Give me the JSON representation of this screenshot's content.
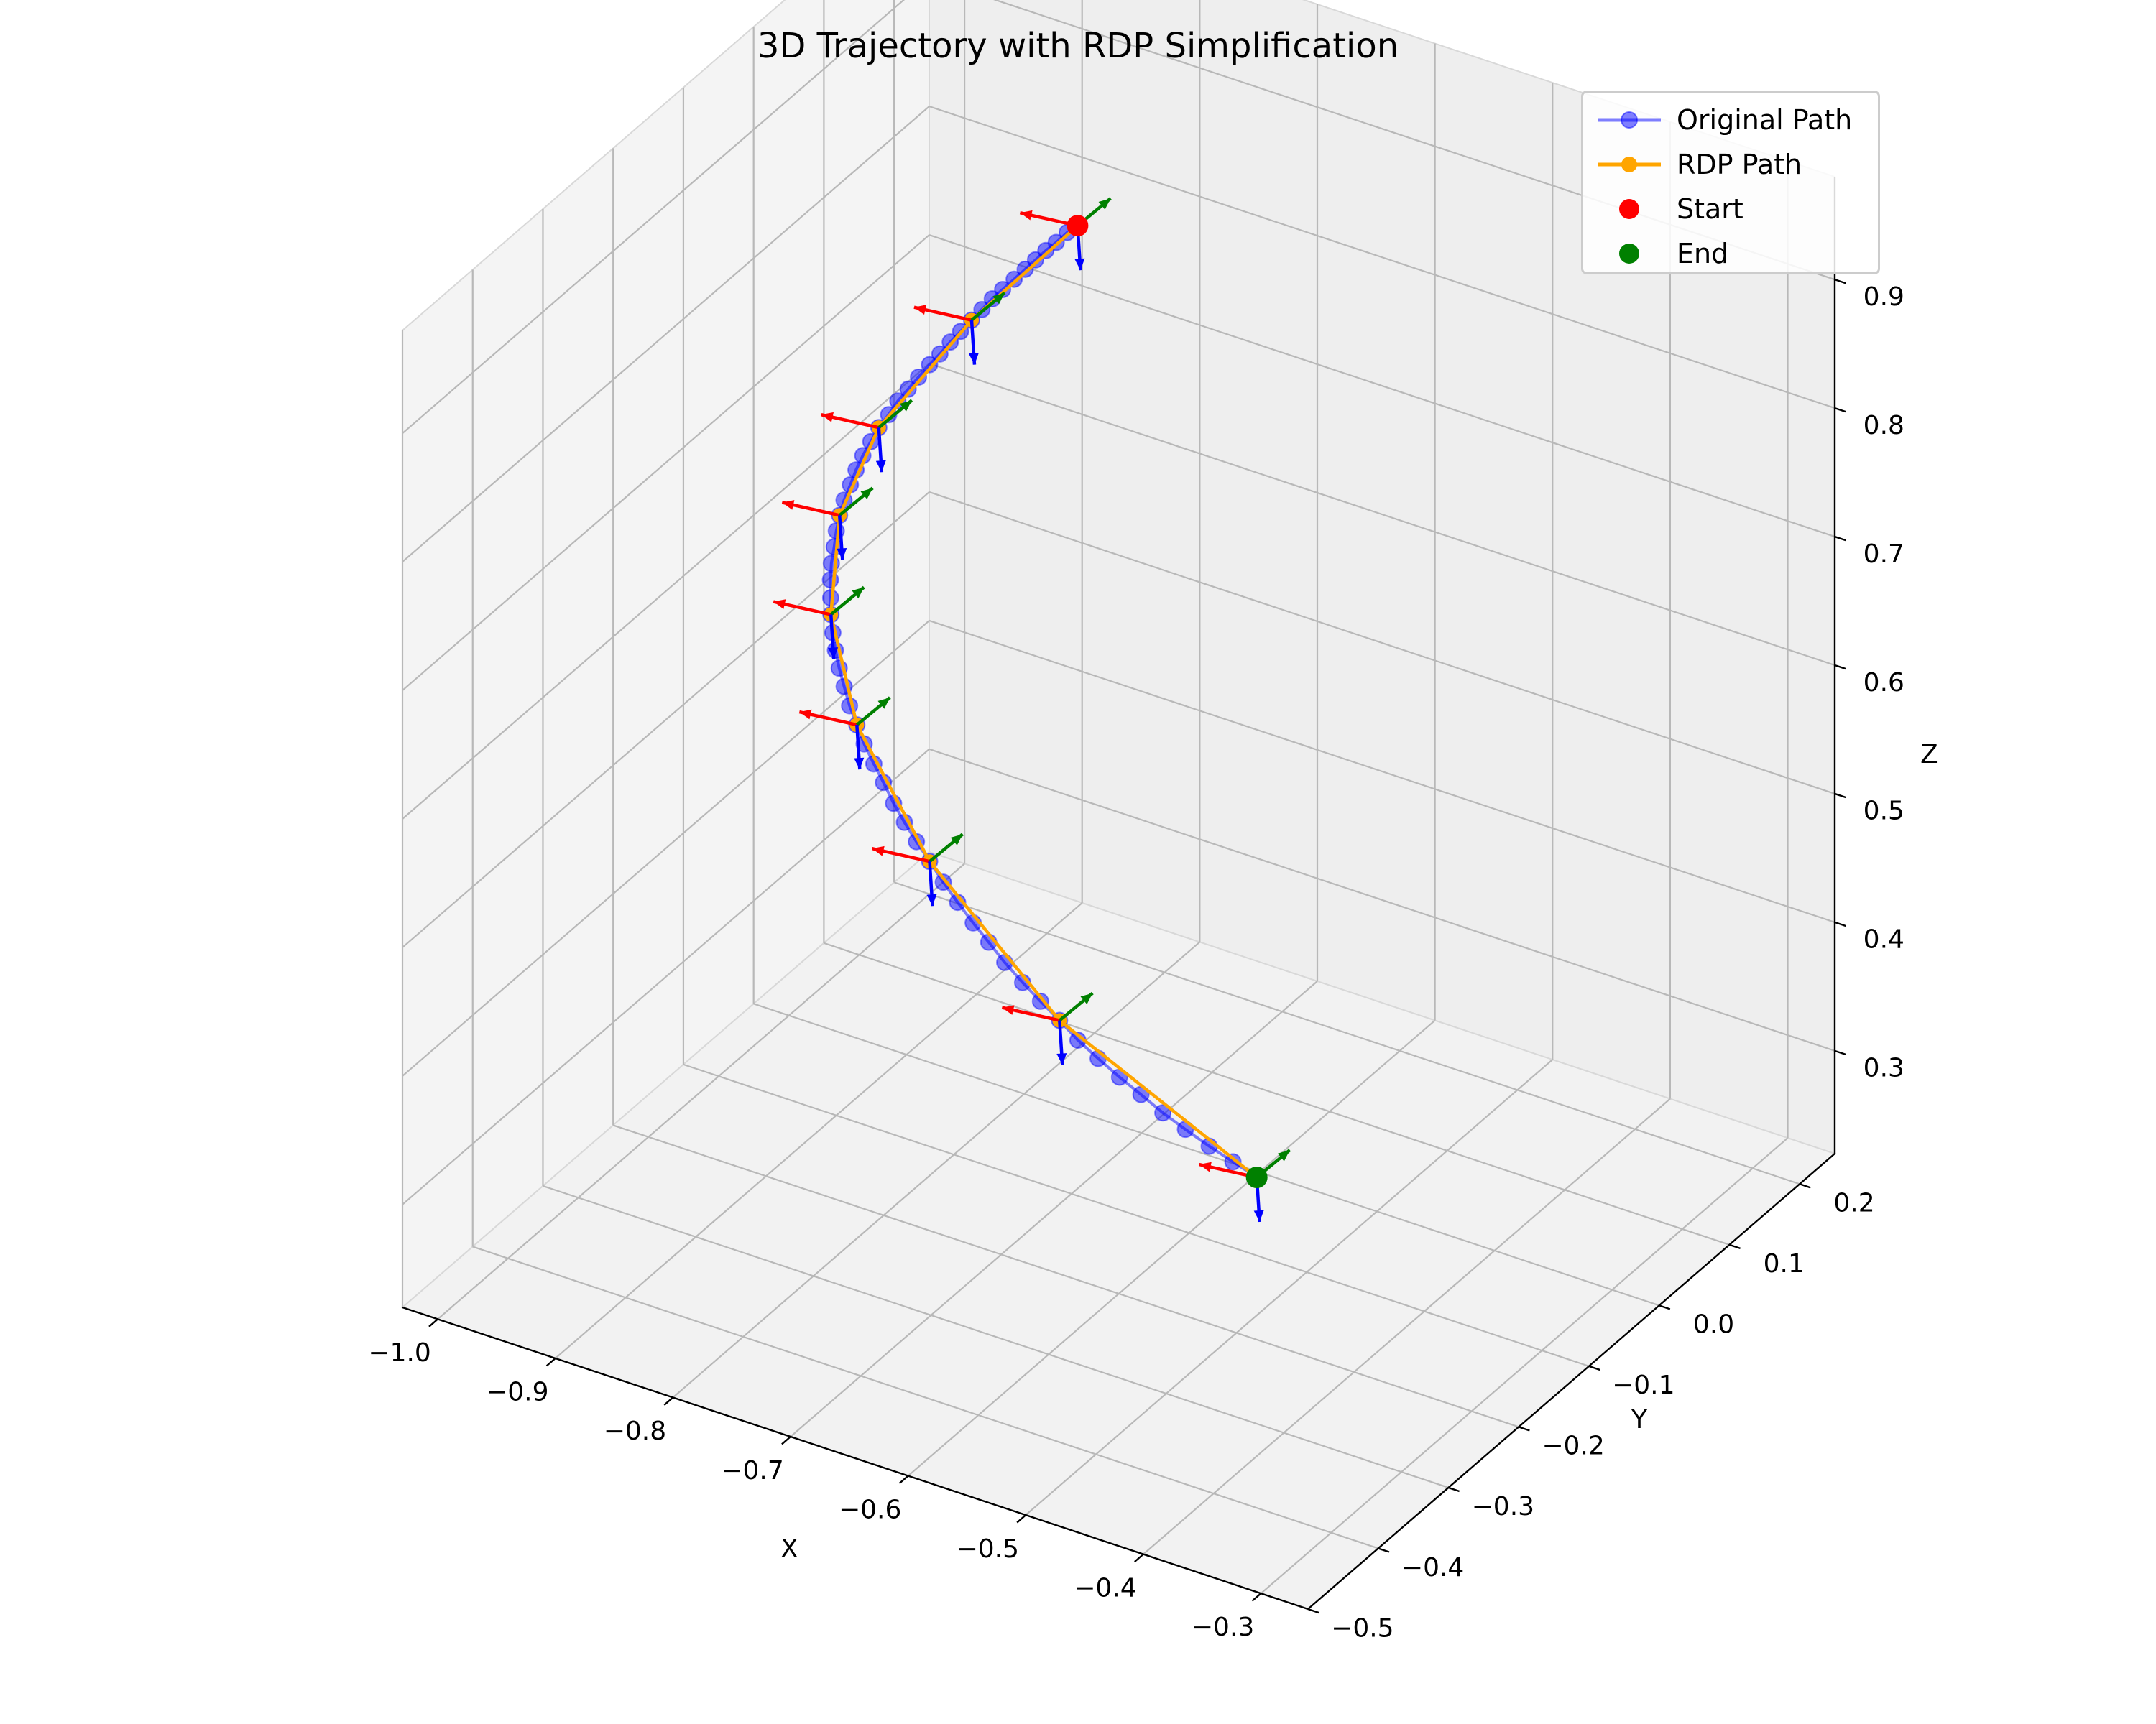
{
  "chart_data": {
    "type": "line3d",
    "title": "3D Trajectory with RDP Simplification",
    "xlabel": "X",
    "ylabel": "Y",
    "zlabel": "Z",
    "xlim": [
      -1.03,
      -0.26
    ],
    "ylim": [
      -0.5,
      0.25
    ],
    "zlim": [
      0.22,
      0.98
    ],
    "x_ticks": [
      -1.0,
      -0.9,
      -0.8,
      -0.7,
      -0.6,
      -0.5,
      -0.4,
      -0.3
    ],
    "x_tick_labels": [
      "−1.0",
      "−0.9",
      "−0.8",
      "−0.7",
      "−0.6",
      "−0.5",
      "−0.4",
      "−0.3"
    ],
    "y_ticks": [
      -0.5,
      -0.4,
      -0.3,
      -0.2,
      -0.1,
      0.0,
      0.1,
      0.2
    ],
    "y_tick_labels": [
      "−0.5",
      "−0.4",
      "−0.3",
      "−0.2",
      "−0.1",
      "0.0",
      "0.1",
      "0.2"
    ],
    "z_ticks": [
      0.3,
      0.4,
      0.5,
      0.6,
      0.7,
      0.8,
      0.9
    ],
    "z_tick_labels": [
      "0.3",
      "0.4",
      "0.5",
      "0.6",
      "0.7",
      "0.8",
      "0.9"
    ],
    "grid": true,
    "legend_position": "top-right",
    "legend": [
      {
        "label": "Original Path",
        "color": "#0000ff",
        "kind": "line-marker"
      },
      {
        "label": "RDP Path",
        "color": "#ffa500",
        "kind": "line-marker"
      },
      {
        "label": "Start",
        "color": "#ff0000",
        "kind": "marker"
      },
      {
        "label": "End",
        "color": "#008000",
        "kind": "marker"
      }
    ],
    "series": [
      {
        "name": "Original Path",
        "color": "#0000ff",
        "points": [
          [
            -0.742,
            -0.021,
            0.923
          ],
          [
            -0.749,
            -0.024,
            0.917
          ],
          [
            -0.756,
            -0.028,
            0.909
          ],
          [
            -0.763,
            -0.031,
            0.902
          ],
          [
            -0.77,
            -0.034,
            0.894
          ],
          [
            -0.777,
            -0.037,
            0.886
          ],
          [
            -0.784,
            -0.041,
            0.878
          ],
          [
            -0.792,
            -0.044,
            0.869
          ],
          [
            -0.799,
            -0.047,
            0.861
          ],
          [
            -0.806,
            -0.05,
            0.852
          ],
          [
            -0.813,
            -0.053,
            0.843
          ],
          [
            -0.82,
            -0.057,
            0.834
          ],
          [
            -0.827,
            -0.06,
            0.825
          ],
          [
            -0.834,
            -0.063,
            0.815
          ],
          [
            -0.841,
            -0.066,
            0.806
          ],
          [
            -0.848,
            -0.07,
            0.796
          ],
          [
            -0.855,
            -0.073,
            0.786
          ],
          [
            -0.862,
            -0.076,
            0.776
          ],
          [
            -0.868,
            -0.079,
            0.765
          ],
          [
            -0.874,
            -0.083,
            0.755
          ],
          [
            -0.879,
            -0.086,
            0.744
          ],
          [
            -0.884,
            -0.089,
            0.733
          ],
          [
            -0.888,
            -0.092,
            0.722
          ],
          [
            -0.891,
            -0.095,
            0.711
          ],
          [
            -0.894,
            -0.099,
            0.7
          ],
          [
            -0.896,
            -0.102,
            0.689
          ],
          [
            -0.897,
            -0.105,
            0.678
          ],
          [
            -0.897,
            -0.108,
            0.667
          ],
          [
            -0.897,
            -0.112,
            0.656
          ],
          [
            -0.896,
            -0.115,
            0.645
          ],
          [
            -0.894,
            -0.118,
            0.633
          ],
          [
            -0.892,
            -0.121,
            0.622
          ],
          [
            -0.888,
            -0.125,
            0.611
          ],
          [
            -0.884,
            -0.128,
            0.6
          ],
          [
            -0.879,
            -0.131,
            0.589
          ],
          [
            -0.873,
            -0.134,
            0.578
          ],
          [
            -0.866,
            -0.138,
            0.567
          ],
          [
            -0.858,
            -0.141,
            0.556
          ],
          [
            -0.85,
            -0.144,
            0.545
          ],
          [
            -0.84,
            -0.147,
            0.534
          ],
          [
            -0.83,
            -0.15,
            0.524
          ],
          [
            -0.819,
            -0.154,
            0.513
          ],
          [
            -0.808,
            -0.157,
            0.503
          ],
          [
            -0.796,
            -0.16,
            0.493
          ],
          [
            -0.783,
            -0.163,
            0.483
          ],
          [
            -0.769,
            -0.167,
            0.473
          ],
          [
            -0.755,
            -0.17,
            0.463
          ],
          [
            -0.74,
            -0.173,
            0.453
          ],
          [
            -0.725,
            -0.176,
            0.444
          ],
          [
            -0.709,
            -0.18,
            0.435
          ],
          [
            -0.692,
            -0.183,
            0.426
          ],
          [
            -0.675,
            -0.186,
            0.418
          ],
          [
            -0.657,
            -0.189,
            0.41
          ],
          [
            -0.639,
            -0.193,
            0.402
          ],
          [
            -0.62,
            -0.196,
            0.395
          ],
          [
            -0.6,
            -0.199,
            0.388
          ],
          [
            -0.58,
            -0.202,
            0.382
          ],
          [
            -0.559,
            -0.206,
            0.376
          ],
          [
            -0.538,
            -0.209,
            0.371
          ],
          [
            -0.516,
            -0.212,
            0.366
          ],
          [
            -0.494,
            -0.215,
            0.362
          ],
          [
            -0.472,
            -0.218,
            0.358
          ]
        ]
      },
      {
        "name": "RDP Path",
        "color": "#ffa500",
        "points": [
          [
            -0.742,
            -0.021,
            0.923
          ],
          [
            -0.813,
            -0.053,
            0.843
          ],
          [
            -0.874,
            -0.083,
            0.755
          ],
          [
            -0.896,
            -0.102,
            0.689
          ],
          [
            -0.892,
            -0.121,
            0.622
          ],
          [
            -0.858,
            -0.141,
            0.556
          ],
          [
            -0.783,
            -0.163,
            0.483
          ],
          [
            -0.657,
            -0.189,
            0.41
          ],
          [
            -0.472,
            -0.218,
            0.358
          ]
        ]
      }
    ],
    "frames": [
      {
        "origin": [
          -0.742,
          -0.021,
          0.923
        ]
      },
      {
        "origin": [
          -0.813,
          -0.053,
          0.843
        ]
      },
      {
        "origin": [
          -0.874,
          -0.083,
          0.755
        ]
      },
      {
        "origin": [
          -0.896,
          -0.102,
          0.689
        ]
      },
      {
        "origin": [
          -0.892,
          -0.121,
          0.622
        ]
      },
      {
        "origin": [
          -0.858,
          -0.141,
          0.556
        ]
      },
      {
        "origin": [
          -0.783,
          -0.163,
          0.483
        ]
      },
      {
        "origin": [
          -0.657,
          -0.189,
          0.41
        ]
      },
      {
        "origin": [
          -0.472,
          -0.218,
          0.358
        ]
      }
    ],
    "frame_axis_colors": {
      "x": "#ff0000",
      "y": "#008000",
      "z": "#0000ff"
    },
    "start": {
      "name": "Start",
      "point": [
        -0.742,
        -0.021,
        0.923
      ],
      "color": "#ff0000"
    },
    "end": {
      "name": "End",
      "point": [
        -0.472,
        -0.218,
        0.358
      ],
      "color": "#008000"
    }
  }
}
